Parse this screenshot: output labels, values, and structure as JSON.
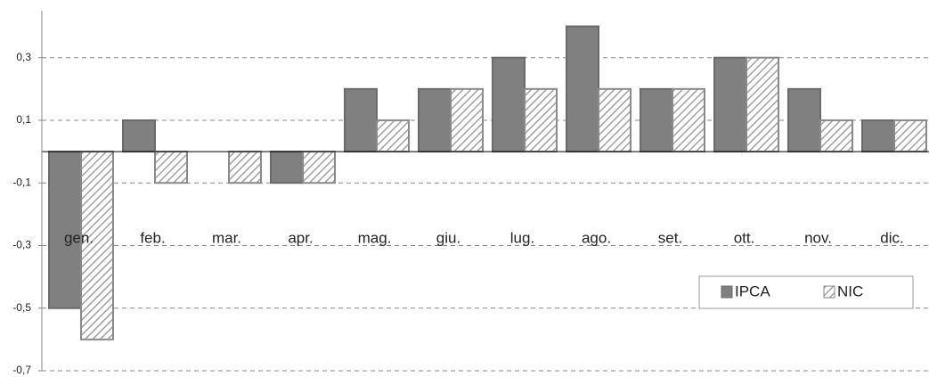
{
  "chart_data": {
    "type": "bar",
    "categories": [
      "gen.",
      "feb.",
      "mar.",
      "apr.",
      "mag.",
      "giu.",
      "lug.",
      "ago.",
      "set.",
      "ott.",
      "nov.",
      "dic."
    ],
    "series": [
      {
        "name": "IPCA",
        "color": "#808080",
        "values": [
          -0.5,
          0.1,
          0,
          -0.1,
          0.2,
          0.2,
          0.3,
          0.4,
          0.2,
          0.3,
          0.2,
          0.1
        ]
      },
      {
        "name": "NIC",
        "color": "#a0a0a0",
        "values": [
          -0.6,
          -0.1,
          -0.1,
          -0.1,
          0.1,
          0.2,
          0.2,
          0.2,
          0.2,
          0.3,
          0.1,
          0.1
        ]
      }
    ],
    "ylim": [
      -0.7,
      0.45
    ],
    "yticks": [
      {
        "value": -0.7,
        "label": "-0,7"
      },
      {
        "value": -0.5,
        "label": "-0,5"
      },
      {
        "value": -0.3,
        "label": "-0,3"
      },
      {
        "value": -0.1,
        "label": "-0,1"
      },
      {
        "value": 0.1,
        "label": "0,1"
      },
      {
        "value": 0.3,
        "label": "0,3"
      }
    ],
    "grid": true,
    "legend": "lower right"
  }
}
